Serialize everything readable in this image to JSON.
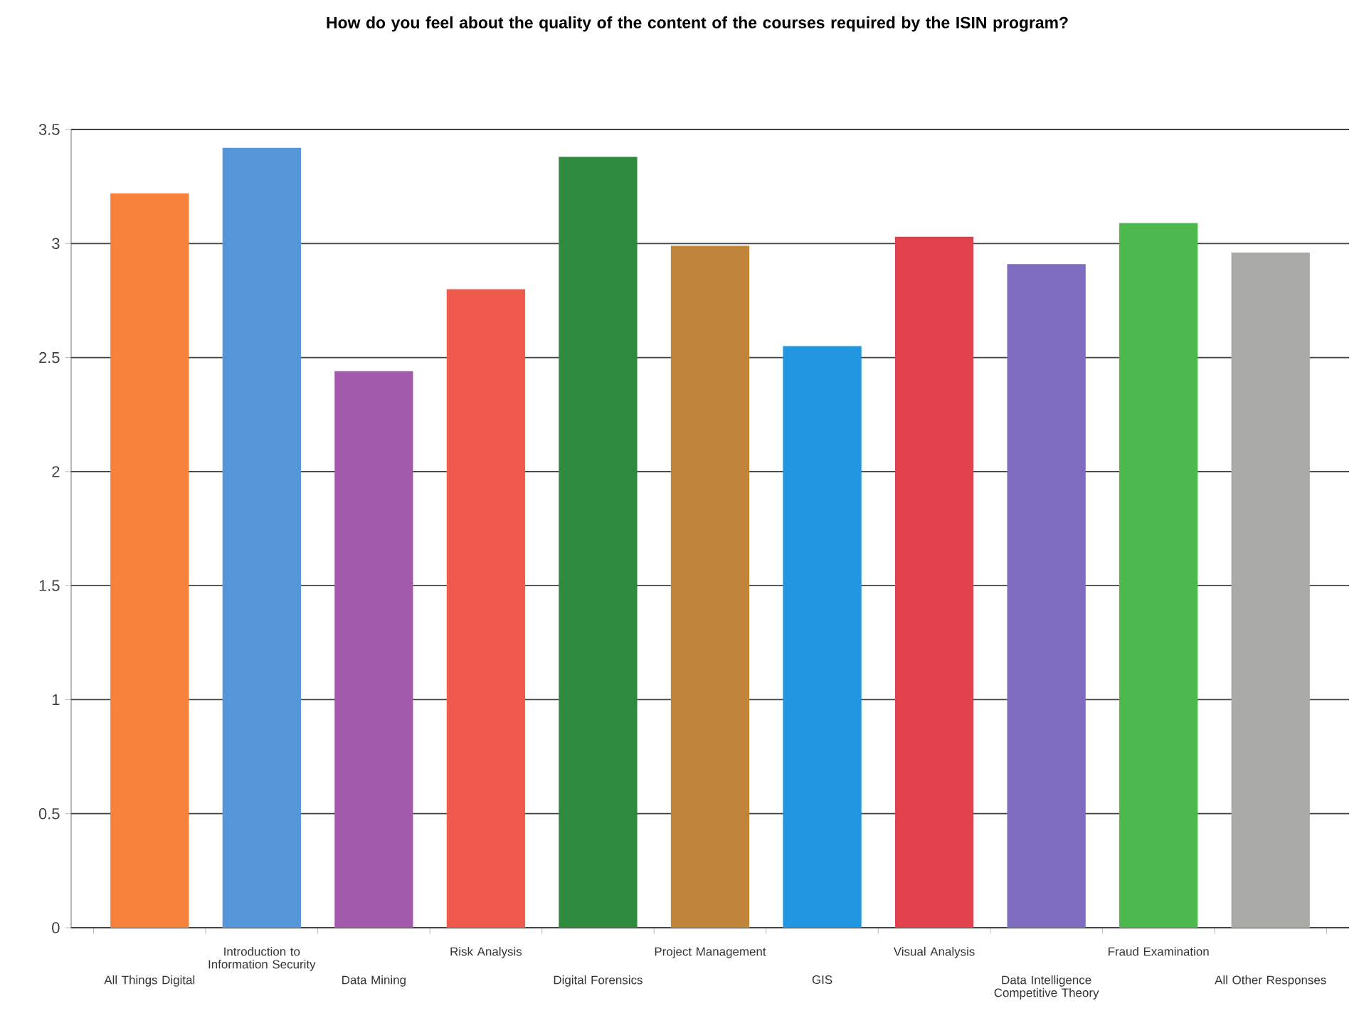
{
  "chart_data": {
    "type": "bar",
    "title": "How do you feel about the quality of the content of the courses required by the ISIN program?",
    "categories": [
      "All Things Digital",
      "Introduction to Information Security",
      "Data Mining",
      "Risk Analysis",
      "Digital Forensics",
      "Project Management",
      "GIS",
      "Visual Analysis",
      "Data Intelligence Competitive Theory",
      "Fraud Examination",
      "All Other Responses"
    ],
    "values": [
      3.22,
      3.42,
      2.44,
      2.8,
      3.38,
      2.99,
      2.55,
      3.03,
      2.91,
      3.09,
      2.96
    ],
    "colors": [
      "#f5813a",
      "#5596d8",
      "#a25aaa",
      "#ef5a4d",
      "#2e8b3e",
      "#c0843a",
      "#2196e0",
      "#e0414c",
      "#7e6cc0",
      "#4cb84e",
      "#aaaaa6"
    ],
    "ylim": [
      0,
      3.5
    ],
    "yticks": [
      0,
      0.5,
      1,
      1.5,
      2,
      2.5,
      3,
      3.5
    ],
    "grid": "y"
  }
}
